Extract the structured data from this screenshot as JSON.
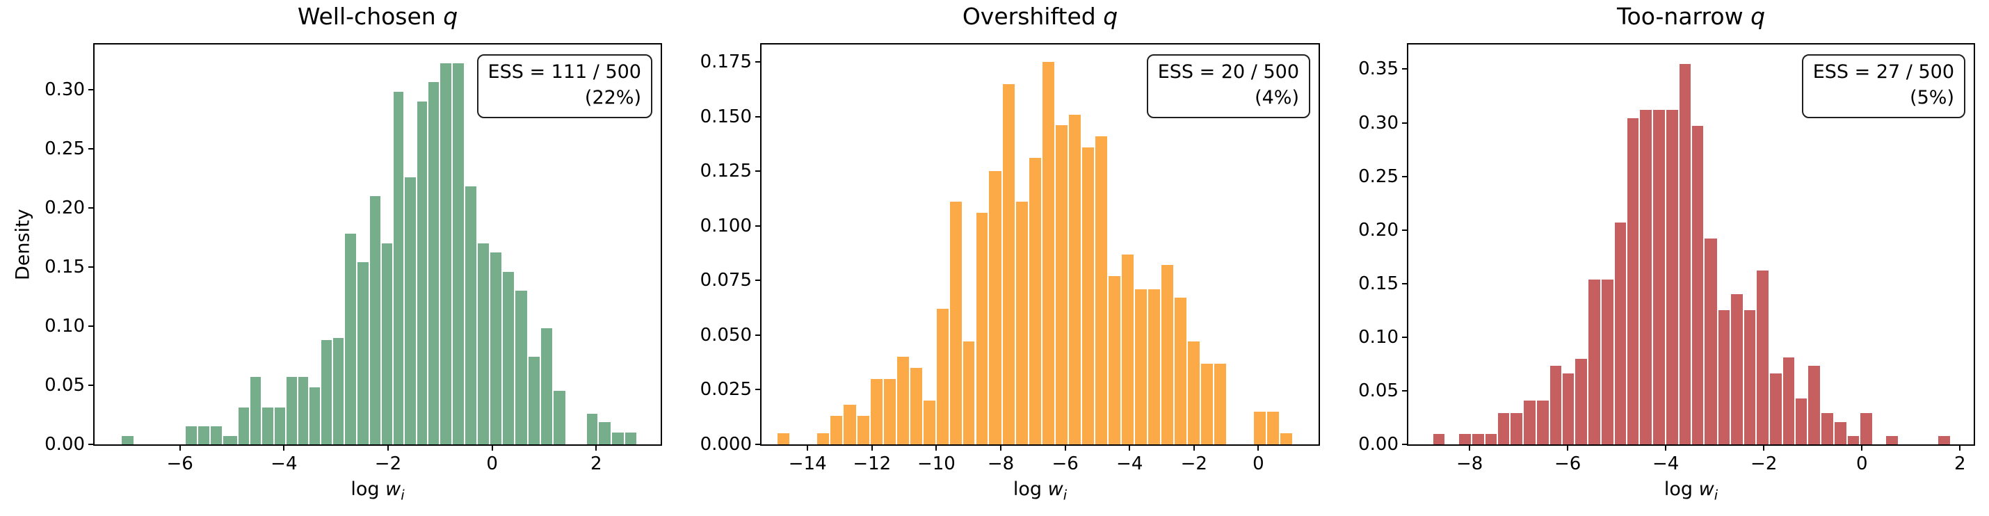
{
  "xlabel": {
    "prefix": "log ",
    "var": "w",
    "sub": "i"
  },
  "ylabel": "Density",
  "chart_data": [
    {
      "type": "bar",
      "title": "Well-chosen q",
      "ess_line1": "ESS = 111 / 500",
      "ess_line2": "(22%)",
      "color": "#76ad8a",
      "xlabel": "log w_i",
      "ylabel": "Density",
      "xlim": [
        -7.64,
        3.24
      ],
      "ylim": [
        0,
        0.338
      ],
      "bin_width": 0.247,
      "xticks": [
        {
          "v": -6,
          "t": "−6"
        },
        {
          "v": -4,
          "t": "−4"
        },
        {
          "v": -2,
          "t": "−2"
        },
        {
          "v": 0,
          "t": "0"
        },
        {
          "v": 2,
          "t": "2"
        }
      ],
      "yticks": [
        {
          "v": 0.0,
          "t": "0.00"
        },
        {
          "v": 0.05,
          "t": "0.05"
        },
        {
          "v": 0.1,
          "t": "0.10"
        },
        {
          "v": 0.15,
          "t": "0.15"
        },
        {
          "v": 0.2,
          "t": "0.20"
        },
        {
          "v": 0.25,
          "t": "0.25"
        },
        {
          "v": 0.3,
          "t": "0.30"
        }
      ],
      "bars": [
        [
          -7.14,
          0.007
        ],
        [
          -5.91,
          0.015
        ],
        [
          -5.67,
          0.015
        ],
        [
          -5.43,
          0.015
        ],
        [
          -5.19,
          0.007
        ],
        [
          -4.9,
          0.031
        ],
        [
          -4.67,
          0.057
        ],
        [
          -4.44,
          0.031
        ],
        [
          -4.21,
          0.031
        ],
        [
          -3.98,
          0.057
        ],
        [
          -3.75,
          0.057
        ],
        [
          -3.53,
          0.048
        ],
        [
          -3.31,
          0.088
        ],
        [
          -3.08,
          0.09
        ],
        [
          -2.86,
          0.178
        ],
        [
          -2.62,
          0.154
        ],
        [
          -2.38,
          0.21
        ],
        [
          -2.15,
          0.17
        ],
        [
          -1.92,
          0.298
        ],
        [
          -1.7,
          0.226
        ],
        [
          -1.47,
          0.29
        ],
        [
          -1.25,
          0.306
        ],
        [
          -1.02,
          0.322
        ],
        [
          -0.78,
          0.322
        ],
        [
          -0.54,
          0.218
        ],
        [
          -0.3,
          0.17
        ],
        [
          -0.06,
          0.162
        ],
        [
          0.18,
          0.146
        ],
        [
          0.42,
          0.13
        ],
        [
          0.67,
          0.074
        ],
        [
          0.91,
          0.098
        ],
        [
          1.16,
          0.045
        ],
        [
          1.8,
          0.026
        ],
        [
          2.03,
          0.019
        ],
        [
          2.28,
          0.01
        ],
        [
          2.53,
          0.01
        ]
      ]
    },
    {
      "type": "bar",
      "title": "Overshifted q",
      "ess_line1": "ESS = 20 / 500",
      "ess_line2": "(4%)",
      "color": "#fbaa47",
      "xlabel": "log w_i",
      "xlim": [
        -15.43,
        1.87
      ],
      "ylim": [
        0,
        0.183
      ],
      "bin_width": 0.411,
      "xticks": [
        {
          "v": -14,
          "t": "−14"
        },
        {
          "v": -12,
          "t": "−12"
        },
        {
          "v": -10,
          "t": "−10"
        },
        {
          "v": -8,
          "t": "−8"
        },
        {
          "v": -6,
          "t": "−6"
        },
        {
          "v": -4,
          "t": "−4"
        },
        {
          "v": -2,
          "t": "−2"
        },
        {
          "v": 0,
          "t": "0"
        }
      ],
      "yticks": [
        {
          "v": 0.0,
          "t": "0.000"
        },
        {
          "v": 0.025,
          "t": "0.025"
        },
        {
          "v": 0.05,
          "t": "0.050"
        },
        {
          "v": 0.075,
          "t": "0.075"
        },
        {
          "v": 0.1,
          "t": "0.100"
        },
        {
          "v": 0.125,
          "t": "0.125"
        },
        {
          "v": 0.15,
          "t": "0.150"
        },
        {
          "v": 0.175,
          "t": "0.175"
        }
      ],
      "bars": [
        [
          -14.97,
          0.005
        ],
        [
          -13.74,
          0.005
        ],
        [
          -13.33,
          0.013
        ],
        [
          -12.92,
          0.018
        ],
        [
          -12.5,
          0.013
        ],
        [
          -12.09,
          0.03
        ],
        [
          -11.68,
          0.03
        ],
        [
          -11.27,
          0.04
        ],
        [
          -10.86,
          0.035
        ],
        [
          -10.45,
          0.02
        ],
        [
          -10.04,
          0.062
        ],
        [
          -9.63,
          0.111
        ],
        [
          -9.22,
          0.047
        ],
        [
          -8.81,
          0.106
        ],
        [
          -8.4,
          0.125
        ],
        [
          -7.98,
          0.165
        ],
        [
          -7.57,
          0.111
        ],
        [
          -7.16,
          0.131
        ],
        [
          -6.75,
          0.175
        ],
        [
          -6.34,
          0.146
        ],
        [
          -5.93,
          0.151
        ],
        [
          -5.52,
          0.136
        ],
        [
          -5.11,
          0.141
        ],
        [
          -4.7,
          0.077
        ],
        [
          -4.29,
          0.087
        ],
        [
          -3.88,
          0.071
        ],
        [
          -3.47,
          0.071
        ],
        [
          -3.06,
          0.082
        ],
        [
          -2.65,
          0.067
        ],
        [
          -2.24,
          0.047
        ],
        [
          -1.83,
          0.037
        ],
        [
          -1.42,
          0.037
        ],
        [
          -0.19,
          0.015
        ],
        [
          0.22,
          0.015
        ],
        [
          0.63,
          0.005
        ]
      ]
    },
    {
      "type": "bar",
      "title": "Too-narrow q",
      "ess_line1": "ESS = 27 / 500",
      "ess_line2": "(5%)",
      "color": "#c65f5f",
      "xlabel": "log w_i",
      "xlim": [
        -9.25,
        2.28
      ],
      "ylim": [
        0,
        0.373
      ],
      "bin_width": 0.264,
      "xticks": [
        {
          "v": -8,
          "t": "−8"
        },
        {
          "v": -6,
          "t": "−6"
        },
        {
          "v": -4,
          "t": "−4"
        },
        {
          "v": -2,
          "t": "−2"
        },
        {
          "v": 0,
          "t": "0"
        },
        {
          "v": 2,
          "t": "2"
        }
      ],
      "yticks": [
        {
          "v": 0.0,
          "t": "0.00"
        },
        {
          "v": 0.05,
          "t": "0.05"
        },
        {
          "v": 0.1,
          "t": "0.10"
        },
        {
          "v": 0.15,
          "t": "0.15"
        },
        {
          "v": 0.2,
          "t": "0.20"
        },
        {
          "v": 0.25,
          "t": "0.25"
        },
        {
          "v": 0.3,
          "t": "0.30"
        },
        {
          "v": 0.35,
          "t": "0.35"
        }
      ],
      "bars": [
        [
          -8.77,
          0.01
        ],
        [
          -8.24,
          0.01
        ],
        [
          -7.98,
          0.01
        ],
        [
          -7.71,
          0.01
        ],
        [
          -7.45,
          0.029
        ],
        [
          -7.19,
          0.029
        ],
        [
          -6.92,
          0.041
        ],
        [
          -6.66,
          0.041
        ],
        [
          -6.39,
          0.073
        ],
        [
          -6.13,
          0.066
        ],
        [
          -5.87,
          0.08
        ],
        [
          -5.6,
          0.154
        ],
        [
          -5.34,
          0.154
        ],
        [
          -5.07,
          0.207
        ],
        [
          -4.81,
          0.304
        ],
        [
          -4.55,
          0.312
        ],
        [
          -4.28,
          0.312
        ],
        [
          -4.02,
          0.312
        ],
        [
          -3.75,
          0.355
        ],
        [
          -3.49,
          0.297
        ],
        [
          -3.23,
          0.192
        ],
        [
          -2.96,
          0.125
        ],
        [
          -2.7,
          0.14
        ],
        [
          -2.43,
          0.125
        ],
        [
          -2.17,
          0.162
        ],
        [
          -1.91,
          0.066
        ],
        [
          -1.64,
          0.081
        ],
        [
          -1.38,
          0.043
        ],
        [
          -1.12,
          0.073
        ],
        [
          -0.85,
          0.029
        ],
        [
          -0.59,
          0.021
        ],
        [
          -0.32,
          0.008
        ],
        [
          -0.06,
          0.029
        ],
        [
          0.47,
          0.008
        ],
        [
          1.53,
          0.008
        ]
      ]
    }
  ],
  "panels": [
    {
      "title_text": "Well-chosen ",
      "title_var": "q",
      "ess_line1": "ESS = 111 / 500",
      "ess_line2": "(22%)"
    },
    {
      "title_text": "Overshifted ",
      "title_var": "q",
      "ess_line1": "ESS = 20 / 500",
      "ess_line2": "(4%)"
    },
    {
      "title_text": "Too-narrow ",
      "title_var": "q",
      "ess_line1": "ESS = 27 / 500",
      "ess_line2": "(5%)"
    }
  ]
}
